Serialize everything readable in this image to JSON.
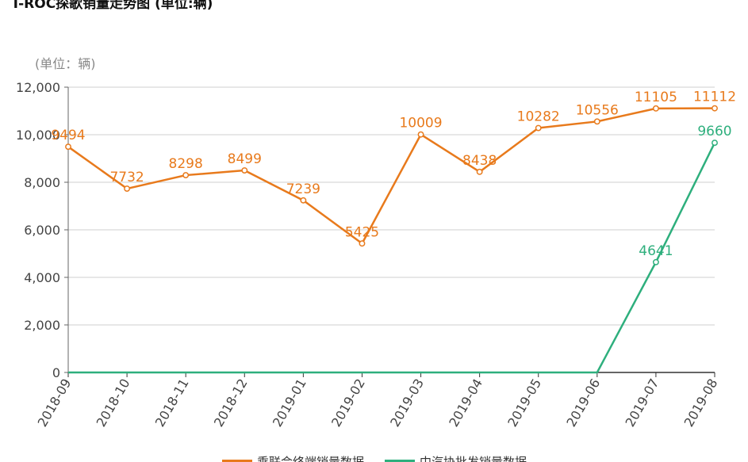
{
  "chart_data": {
    "type": "line",
    "title": "T-ROC探歌销量走势图 (单位:辆)",
    "ylabel": "(单位：辆)",
    "categories": [
      "2018-09",
      "2018-10",
      "2018-11",
      "2018-12",
      "2019-01",
      "2019-02",
      "2019-03",
      "2019-04",
      "2019-05",
      "2019-06",
      "2019-07",
      "2019-08"
    ],
    "ylim": [
      0,
      12000
    ],
    "yticks": [
      "0",
      "2,000",
      "4,000",
      "6,000",
      "8,000",
      "10,000",
      "12,000"
    ],
    "grid": true,
    "legend_position": "bottom",
    "series": [
      {
        "name": "乘联会终端销量数据",
        "color": "#e87a1c",
        "values": [
          9494,
          7732,
          8298,
          8499,
          7239,
          5425,
          10009,
          8438,
          10282,
          10556,
          11105,
          11112
        ],
        "labels": [
          "9494",
          "7732",
          "8298",
          "8499",
          "7239",
          "5425",
          "10009",
          "8438",
          "10282",
          "10556",
          "11105",
          "11112"
        ]
      },
      {
        "name": "中汽协批发销量数据",
        "color": "#2eaf7d",
        "values": [
          0,
          0,
          0,
          0,
          0,
          0,
          0,
          0,
          0,
          0,
          4641,
          9660
        ],
        "labels": [
          "",
          "",
          "",
          "",
          "",
          "",
          "",
          "",
          "",
          "",
          "4641",
          "9660"
        ]
      }
    ]
  }
}
